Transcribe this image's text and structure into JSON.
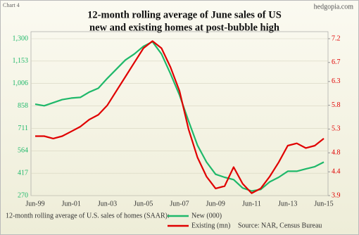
{
  "chart_data": {
    "type": "line",
    "corner_label": "Chart 4",
    "watermark": "hedgopia.com",
    "title": [
      "12-month  rolling average  of June sales of US",
      "new  and  existing homes at post-bubble  high"
    ],
    "footnote": "12-month rolling average of U.S. sales of homes (SAAR):",
    "source": "Source: NAR, Census Bureau",
    "legend": "bottom",
    "grid": true,
    "categories": [
      "Jun-99",
      null,
      null,
      null,
      "Jun-01",
      null,
      null,
      null,
      "Jun-03",
      null,
      null,
      null,
      "Jun-05",
      null,
      null,
      null,
      "Jun-07",
      null,
      null,
      null,
      "Jun-09",
      null,
      null,
      null,
      "Jun-11",
      null,
      null,
      null,
      "Jun-13",
      null,
      null,
      null,
      "Jun-15"
    ],
    "ylim": [
      270,
      1300
    ],
    "yticks": [
      270,
      417,
      564,
      711,
      858,
      {
        "value": 1006,
        "label": "1,006"
      },
      {
        "value": 1153,
        "label": "1,153"
      },
      {
        "value": 1300,
        "label": "1,300"
      }
    ],
    "y2lim": [
      3.9,
      7.2
    ],
    "y2ticks": [
      3.9,
      4.4,
      4.8,
      5.3,
      5.8,
      6.3,
      6.7,
      7.2
    ],
    "series": [
      {
        "name": "New (000)",
        "color": "#1fb86a",
        "values": [
          870,
          860,
          880,
          900,
          910,
          915,
          950,
          975,
          1040,
          1100,
          1160,
          1200,
          1250,
          1280,
          1200,
          1070,
          930,
          760,
          600,
          490,
          410,
          390,
          375,
          320,
          300,
          310,
          360,
          390,
          430,
          430,
          445,
          460,
          490
        ]
      },
      {
        "name": "Existing (mn)",
        "color": "#e00000",
        "axis": "y2",
        "values": [
          5.15,
          5.15,
          5.1,
          5.15,
          5.25,
          5.35,
          5.5,
          5.6,
          5.8,
          6.1,
          6.4,
          6.7,
          7.0,
          7.15,
          7.0,
          6.6,
          6.1,
          5.3,
          4.7,
          4.3,
          4.05,
          4.1,
          4.5,
          4.15,
          3.95,
          4.05,
          4.3,
          4.6,
          4.95,
          5.0,
          4.9,
          4.95,
          5.1
        ]
      }
    ]
  }
}
